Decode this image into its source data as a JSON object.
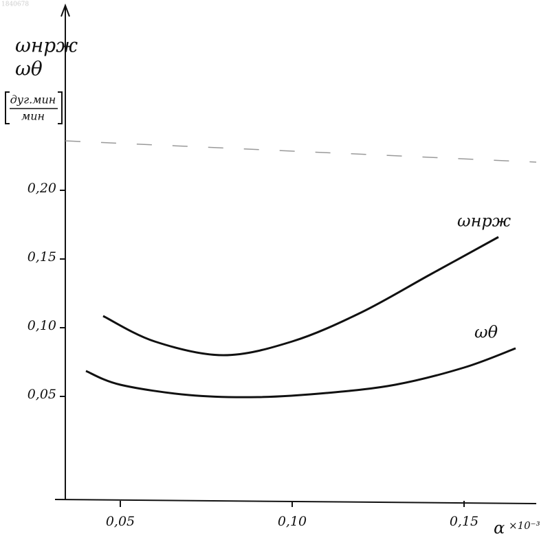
{
  "chart_data": {
    "type": "line",
    "watermark": "1840678",
    "y_labels": [
      "ωнрж",
      "ωθ"
    ],
    "y_unit": {
      "numerator": "дуг.мин",
      "denominator": "мин"
    },
    "x_label": "α",
    "x_unit": "×10⁻³",
    "xlim": [
      0.031,
      0.171
    ],
    "ylim": [
      -0.025,
      0.335
    ],
    "xticks": [
      {
        "value": 0.05,
        "label": "0,05"
      },
      {
        "value": 0.1,
        "label": "0,10"
      },
      {
        "value": 0.15,
        "label": "0,15"
      }
    ],
    "yticks": [
      {
        "value": 0.05,
        "label": "0,05"
      },
      {
        "value": 0.1,
        "label": "0,10"
      },
      {
        "value": 0.15,
        "label": "0,15"
      },
      {
        "value": 0.2,
        "label": "0,20"
      }
    ],
    "grid": false,
    "series": [
      {
        "name": "ωнрж",
        "color": "#111111",
        "x": [
          0.045,
          0.06,
          0.08,
          0.1,
          0.12,
          0.14,
          0.16
        ],
        "values": [
          0.1085,
          0.09,
          0.08,
          0.09,
          0.111,
          0.1385,
          0.166
        ]
      },
      {
        "name": "ωθ",
        "color": "#111111",
        "x": [
          0.04,
          0.05,
          0.07,
          0.09,
          0.11,
          0.13,
          0.15,
          0.165
        ],
        "values": [
          0.0685,
          0.0585,
          0.051,
          0.0495,
          0.0525,
          0.0585,
          0.071,
          0.085
        ]
      }
    ]
  }
}
